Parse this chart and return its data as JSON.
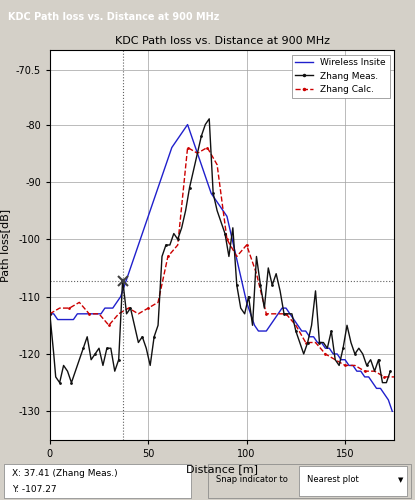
{
  "title": "KDC Path loss vs. Distance at 900 MHz",
  "window_title": "KDC Path loss vs. Distance at 900 MHz",
  "xlabel": "Distance [m]",
  "ylabel": "Path loss[dB]",
  "xlim": [
    0,
    175
  ],
  "ylim": [
    -135,
    -67
  ],
  "yticks": [
    -130,
    -120,
    -110,
    -100,
    -90,
    -80,
    -70.5
  ],
  "xticks": [
    0,
    50,
    100,
    150
  ],
  "dashed_vline_x": 37,
  "dashed_hline_y": -107.27,
  "status_text": "X: 37.41 (Zhang Meas.)\nY: -107.27",
  "legend_labels": [
    "Wireless Insite",
    "Zhang Meas.",
    "Zhang Calc."
  ],
  "legend_colors": [
    "#0000cc",
    "#000000",
    "#cc0000"
  ],
  "legend_styles": [
    "solid",
    "solid_marker",
    "dashed_marker"
  ],
  "background_color": "#f0f0f0",
  "plot_bg_color": "#ffffff",
  "wi_x": [
    0,
    2,
    4,
    6,
    8,
    10,
    12,
    14,
    16,
    18,
    20,
    22,
    24,
    26,
    28,
    30,
    32,
    34,
    36,
    38,
    40,
    42,
    44,
    46,
    48,
    50,
    52,
    54,
    56,
    58,
    60,
    62,
    64,
    66,
    68,
    70,
    72,
    74,
    76,
    78,
    80,
    82,
    84,
    86,
    88,
    90,
    92,
    94,
    96,
    98,
    100,
    102,
    104,
    106,
    108,
    110,
    112,
    114,
    116,
    118,
    120,
    122,
    124,
    126,
    128,
    130,
    132,
    134,
    136,
    138,
    140,
    142,
    144,
    146,
    148,
    150,
    152,
    154,
    156,
    158,
    160,
    162,
    164,
    166,
    168,
    170,
    172,
    174
  ],
  "wi_y": [
    -113,
    -113,
    -114,
    -114,
    -114,
    -114,
    -114,
    -113,
    -113,
    -113,
    -113,
    -113,
    -113,
    -113,
    -112,
    -112,
    -112,
    -111,
    -110,
    -108,
    -106,
    -104,
    -102,
    -100,
    -98,
    -96,
    -94,
    -92,
    -90,
    -88,
    -86,
    -84,
    -83,
    -82,
    -81,
    -80,
    -82,
    -84,
    -86,
    -88,
    -90,
    -92,
    -93,
    -94,
    -95,
    -96,
    -99,
    -102,
    -105,
    -108,
    -111,
    -113,
    -115,
    -116,
    -116,
    -116,
    -115,
    -114,
    -113,
    -112,
    -112,
    -113,
    -114,
    -115,
    -116,
    -116,
    -117,
    -117,
    -118,
    -118,
    -119,
    -119,
    -120,
    -120,
    -121,
    -121,
    -122,
    -122,
    -123,
    -123,
    -124,
    -124,
    -125,
    -126,
    -126,
    -127,
    -128,
    -130
  ],
  "zm_x": [
    0,
    2,
    3,
    5,
    7,
    9,
    11,
    13,
    15,
    17,
    19,
    21,
    23,
    25,
    27,
    29,
    31,
    33,
    35,
    37,
    39,
    41,
    43,
    45,
    47,
    49,
    51,
    53,
    55,
    57,
    59,
    61,
    63,
    65,
    67,
    69,
    71,
    73,
    75,
    77,
    79,
    81,
    83,
    85,
    87,
    89,
    91,
    93,
    95,
    97,
    99,
    101,
    103,
    105,
    107,
    109,
    111,
    113,
    115,
    117,
    119,
    121,
    123,
    125,
    127,
    129,
    131,
    133,
    135,
    137,
    139,
    141,
    143,
    145,
    147,
    149,
    151,
    153,
    155,
    157,
    159,
    161,
    163,
    165,
    167,
    169,
    171,
    173
  ],
  "zm_y": [
    -113,
    -120,
    -124,
    -125,
    -122,
    -123,
    -125,
    -123,
    -121,
    -119,
    -117,
    -121,
    -120,
    -119,
    -122,
    -119,
    -119,
    -123,
    -121,
    -107,
    -113,
    -112,
    -115,
    -118,
    -117,
    -119,
    -122,
    -117,
    -115,
    -103,
    -101,
    -101,
    -99,
    -100,
    -98,
    -95,
    -91,
    -88,
    -85,
    -82,
    -80,
    -79,
    -92,
    -95,
    -97,
    -99,
    -103,
    -98,
    -108,
    -112,
    -113,
    -110,
    -115,
    -103,
    -108,
    -112,
    -105,
    -108,
    -106,
    -109,
    -113,
    -113,
    -113,
    -116,
    -118,
    -120,
    -118,
    -115,
    -109,
    -118,
    -118,
    -119,
    -116,
    -121,
    -122,
    -119,
    -115,
    -118,
    -120,
    -119,
    -120,
    -122,
    -121,
    -123,
    -121,
    -125,
    -125,
    -123
  ],
  "zc_x": [
    0,
    5,
    10,
    15,
    20,
    25,
    30,
    35,
    40,
    45,
    50,
    55,
    60,
    65,
    70,
    75,
    80,
    85,
    90,
    95,
    100,
    105,
    110,
    115,
    120,
    125,
    130,
    135,
    140,
    145,
    150,
    155,
    160,
    165,
    170,
    175
  ],
  "zc_y": [
    -113,
    -112,
    -112,
    -111,
    -113,
    -113,
    -115,
    -113,
    -112,
    -113,
    -112,
    -111,
    -103,
    -101,
    -84,
    -85,
    -84,
    -87,
    -100,
    -103,
    -101,
    -106,
    -113,
    -113,
    -113,
    -115,
    -118,
    -118,
    -120,
    -121,
    -122,
    -122,
    -123,
    -123,
    -124,
    -124
  ]
}
